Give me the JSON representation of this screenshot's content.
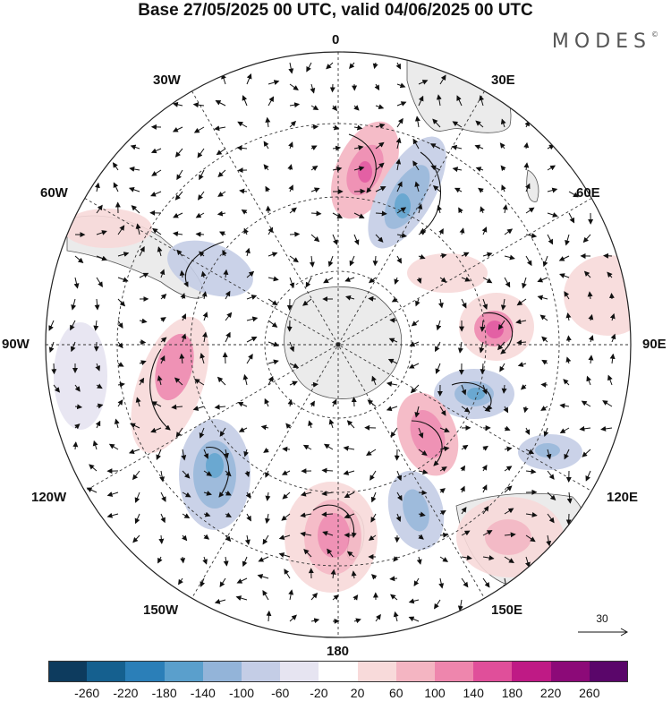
{
  "title": "Base 27/05/2025 00 UTC, valid 04/06/2025 00 UTC",
  "brand": "MODES",
  "brand_mark": "©",
  "longitude_labels": {
    "lon_0": "0",
    "lon_30E": "30E",
    "lon_60E": "60E",
    "lon_90E": "90E",
    "lon_120E": "120E",
    "lon_150E": "150E",
    "lon_180": "180",
    "lon_150W": "150W",
    "lon_120W": "120W",
    "lon_90W": "90W",
    "lon_60W": "60W",
    "lon_30W": "30W"
  },
  "reference_vector": {
    "label": "30"
  },
  "colorbar": {
    "colors": [
      "#0d3b5e",
      "#15608f",
      "#2b7fb8",
      "#5a9fcc",
      "#93b4d9",
      "#c4cde6",
      "#e6e4f1",
      "#ffffff",
      "#f8dada",
      "#f4b5c2",
      "#ee86ad",
      "#e04f9a",
      "#bf1a85",
      "#8c0a78",
      "#5a066a"
    ],
    "ticks": [
      "-260",
      "-220",
      "-180",
      "-140",
      "-100",
      "-60",
      "-20",
      "20",
      "60",
      "100",
      "140",
      "180",
      "220",
      "260"
    ]
  },
  "map": {
    "projection": "south polar stereographic",
    "land_color": "#ebebeb",
    "grid": true
  }
}
